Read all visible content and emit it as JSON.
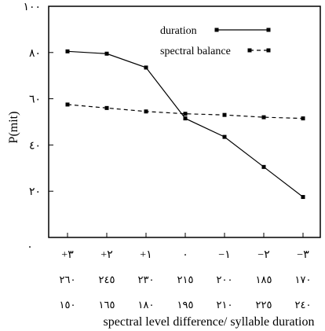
{
  "chart_data": {
    "type": "line",
    "ylabel": "P(mit)",
    "xlabel": "spectral level difference/ syllable duration",
    "ylim": [
      0,
      100
    ],
    "y_ticks": [
      "۲۰",
      "٤۰",
      "٦۰",
      "۸۰",
      "۱۰۰"
    ],
    "x_tick_rows": [
      [
        "+٣",
        "+٢",
        "+١",
        "٠",
        "−١",
        "−٢",
        "−٣"
      ],
      [
        "٢٦٠",
        "٢٤٥",
        "٢٣٠",
        "٢١٥",
        "٢٠٠",
        "١٨٥",
        "١٧٠"
      ],
      [
        "١٥٠",
        "١٦٥",
        "١٨٠",
        "١٩٥",
        "٢١٠",
        "٢٢٥",
        "٢٤٠"
      ]
    ],
    "origin_mark": "٠",
    "series": [
      {
        "name": "duration",
        "style": "solid",
        "color": "#000000",
        "values": [
          80.5,
          79.5,
          73.5,
          51.5,
          43.5,
          30.5,
          17.5
        ]
      },
      {
        "name": "spectral balance",
        "style": "dashed",
        "color": "#000000",
        "values": [
          57.5,
          56,
          54.5,
          53.5,
          53,
          52,
          51.5
        ]
      }
    ],
    "legend_position": "top-right",
    "grid": false
  }
}
